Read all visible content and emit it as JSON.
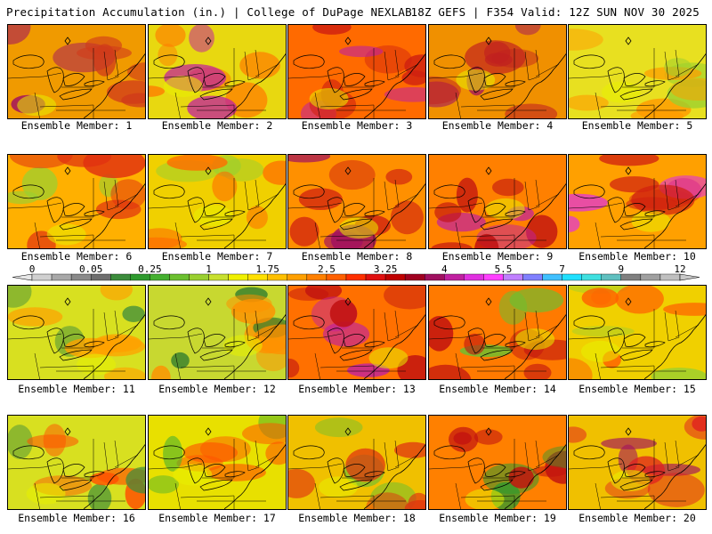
{
  "header": {
    "title_left": "Precipitation Accumulation (in.) | College of DuPage NEXLAB",
    "title_right": "18Z GEFS | F354 Valid: 12Z SUN NOV 30 2025"
  },
  "colors": {
    "background": "#ffffff",
    "border": "#000000"
  },
  "colorbar": {
    "labels": [
      "0",
      "0.05",
      "0.25",
      "1",
      "1.75",
      "2.5",
      "3.25",
      "4",
      "5.5",
      "7",
      "9",
      "12"
    ],
    "swatches": [
      "#d0d0d0",
      "#a8a8a8",
      "#8a8a8a",
      "#6e6e6e",
      "#3c8c3c",
      "#2e9a2e",
      "#45b030",
      "#6cc030",
      "#9ad030",
      "#c8e030",
      "#f0f000",
      "#ffe000",
      "#ffc000",
      "#ffa000",
      "#ff8000",
      "#ff6000",
      "#ff3000",
      "#e01010",
      "#c00000",
      "#a00020",
      "#a01060",
      "#c020a0",
      "#e030e0",
      "#ff40ff",
      "#c080ff",
      "#8080ff",
      "#40c0ff",
      "#20e0ff",
      "#40e0e0",
      "#60c0c0",
      "#808080",
      "#a0a0a0",
      "#c0c0c0"
    ]
  },
  "ensemble": {
    "label_prefix": "Ensemble Member:",
    "members": [
      {
        "id": "1",
        "label": "Ensemble Member: 1",
        "fill": "#f09a00",
        "blob": "#d03a1a",
        "accent": "#a01060"
      },
      {
        "id": "2",
        "label": "Ensemble Member: 2",
        "fill": "#e8d810",
        "blob": "#ff7a00",
        "accent": "#c020a0"
      },
      {
        "id": "3",
        "label": "Ensemble Member: 3",
        "fill": "#ff6a00",
        "blob": "#d02010",
        "accent": "#c020a0"
      },
      {
        "id": "4",
        "label": "Ensemble Member: 4",
        "fill": "#f09000",
        "blob": "#c02020",
        "accent": "#a01060"
      },
      {
        "id": "5",
        "label": "Ensemble Member: 5",
        "fill": "#e8e020",
        "blob": "#ff9a00",
        "accent": "#9ad030"
      },
      {
        "id": "6",
        "label": "Ensemble Member: 6",
        "fill": "#ffb000",
        "blob": "#e03010",
        "accent": "#9ad030"
      },
      {
        "id": "7",
        "label": "Ensemble Member: 7",
        "fill": "#f0d000",
        "blob": "#ff6a00",
        "accent": "#9ad030"
      },
      {
        "id": "8",
        "label": "Ensemble Member: 8",
        "fill": "#ff9000",
        "blob": "#d02010",
        "accent": "#a01060"
      },
      {
        "id": "9",
        "label": "Ensemble Member: 9",
        "fill": "#ff8000",
        "blob": "#c01010",
        "accent": "#c020a0"
      },
      {
        "id": "10",
        "label": "Ensemble Member: 10",
        "fill": "#ffa000",
        "blob": "#d02010",
        "accent": "#e030e0"
      },
      {
        "id": "11",
        "label": "Ensemble Member: 11",
        "fill": "#d8e020",
        "blob": "#ffa000",
        "accent": "#3c8c3c"
      },
      {
        "id": "12",
        "label": "Ensemble Member: 12",
        "fill": "#c8d830",
        "blob": "#ff9000",
        "accent": "#2e7a2e"
      },
      {
        "id": "13",
        "label": "Ensemble Member: 13",
        "fill": "#ff7000",
        "blob": "#c01010",
        "accent": "#c020a0"
      },
      {
        "id": "14",
        "label": "Ensemble Member: 14",
        "fill": "#ff7a00",
        "blob": "#c01010",
        "accent": "#6cc030"
      },
      {
        "id": "15",
        "label": "Ensemble Member: 15",
        "fill": "#f0d000",
        "blob": "#ff6000",
        "accent": "#9ad030"
      },
      {
        "id": "16",
        "label": "Ensemble Member: 16",
        "fill": "#d8e020",
        "blob": "#ff5000",
        "accent": "#3c8c3c"
      },
      {
        "id": "17",
        "label": "Ensemble Member: 17",
        "fill": "#e8e000",
        "blob": "#ff5000",
        "accent": "#45b030"
      },
      {
        "id": "18",
        "label": "Ensemble Member: 18",
        "fill": "#f0c000",
        "blob": "#e03010",
        "accent": "#6cc030"
      },
      {
        "id": "19",
        "label": "Ensemble Member: 19",
        "fill": "#ff8000",
        "blob": "#c01010",
        "accent": "#2e9a2e"
      },
      {
        "id": "20",
        "label": "Ensemble Member: 20",
        "fill": "#f0c000",
        "blob": "#e02020",
        "accent": "#a01060"
      }
    ]
  }
}
